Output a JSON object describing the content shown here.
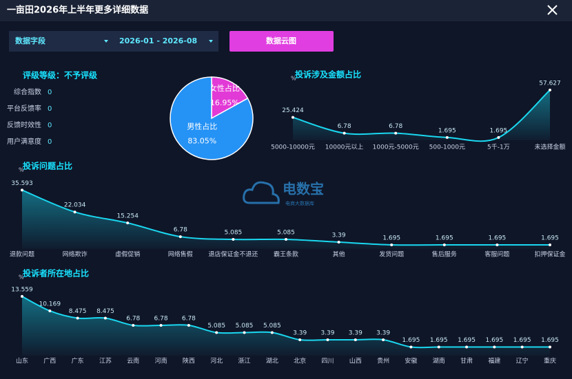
{
  "header": {
    "title": "一亩田2026年上半年更多详细数据"
  },
  "controls": {
    "field_select": "数据字段",
    "date_range": "2026-01 - 2026-08",
    "button": "数据云图"
  },
  "rating": {
    "title": "评级等级：不予评级",
    "metrics": [
      {
        "label": "综合指数",
        "value": 0
      },
      {
        "label": "平台反馈率",
        "value": 0
      },
      {
        "label": "反馈时效性",
        "value": 0
      },
      {
        "label": "用户满意度",
        "value": 0
      }
    ]
  },
  "watermark": {
    "name": "电数宝",
    "tagline": "电商大数据库"
  },
  "chart_data": [
    {
      "type": "pie",
      "categories": [
        "女性占比",
        "男性占比"
      ],
      "values": [
        16.95,
        83.05
      ],
      "value_labels": [
        "16.95%",
        "83.05%"
      ],
      "colors": [
        "#e23ad6",
        "#2592f5"
      ]
    },
    {
      "type": "line",
      "title": "投诉涉及金额占比",
      "y_label": "%",
      "categories": [
        "5000-10000元",
        "10000元以上",
        "1000元-5000元",
        "500-1000元",
        "5千-1万",
        "未选择金额"
      ],
      "values": [
        25.424,
        6.78,
        6.78,
        1.695,
        1.695,
        57.627
      ],
      "color": "#1ad8f0",
      "ylim": [
        0,
        60
      ]
    },
    {
      "type": "line",
      "title": "投诉问题占比",
      "y_label": "%",
      "categories": [
        "退款问题",
        "网络欺诈",
        "虚假促销",
        "网络售假",
        "退店保证金不退还",
        "霸王条款",
        "其他",
        "发货问题",
        "售后服务",
        "客服问题",
        "扣押保证金"
      ],
      "values": [
        35.593,
        22.034,
        15.254,
        6.78,
        5.085,
        5.085,
        3.39,
        1.695,
        1.695,
        1.695,
        1.695
      ],
      "color": "#1ad8f0",
      "ylim": [
        0,
        40
      ]
    },
    {
      "type": "line",
      "title": "投诉者所在地占比",
      "y_label": "%",
      "categories": [
        "山东",
        "广西",
        "广东",
        "江苏",
        "云南",
        "河南",
        "陕西",
        "河北",
        "浙江",
        "湖北",
        "北京",
        "四川",
        "山西",
        "贵州",
        "安徽",
        "湖南",
        "甘肃",
        "福建",
        "辽宁",
        "重庆"
      ],
      "values": [
        13.559,
        10.169,
        8.475,
        8.475,
        6.78,
        6.78,
        6.78,
        5.085,
        5.085,
        5.085,
        3.39,
        3.39,
        3.39,
        3.39,
        1.695,
        1.695,
        1.695,
        1.695,
        1.695,
        1.695
      ],
      "color": "#1ad8f0",
      "ylim": [
        0,
        15
      ]
    }
  ]
}
